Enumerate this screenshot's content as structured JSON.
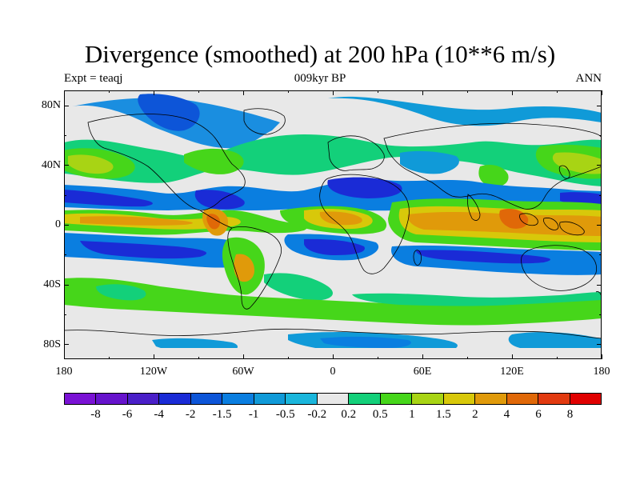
{
  "title": "Divergence (smoothed) at 200 hPa (10**6 m/s)",
  "subtitle_left": "Expt = teaqj",
  "subtitle_center": "009kyr BP",
  "subtitle_right": "ANN",
  "lat_labels": [
    "80N",
    "40N",
    "0",
    "40S",
    "80S"
  ],
  "lon_labels": [
    "180",
    "120W",
    "60W",
    "0",
    "60E",
    "120E",
    "180"
  ],
  "colorbar": {
    "labels": [
      "-8",
      "-6",
      "-4",
      "-2",
      "-1.5",
      "-1",
      "-0.5",
      "-0.2",
      "0.2",
      "0.5",
      "1",
      "1.5",
      "2",
      "4",
      "6",
      "8"
    ],
    "colors": [
      "#7a12d4",
      "#6613cc",
      "#4a1fc8",
      "#1a2bd6",
      "#0d55d8",
      "#0a7ee0",
      "#109ad8",
      "#1ab6dc",
      "#e8e8e8",
      "#13d07a",
      "#46d61a",
      "#a8d414",
      "#d8c80a",
      "#e09a0a",
      "#e06808",
      "#e23a10",
      "#e00000"
    ]
  },
  "map": {
    "background": "#e8e8e8",
    "coast_color": "#000000"
  }
}
